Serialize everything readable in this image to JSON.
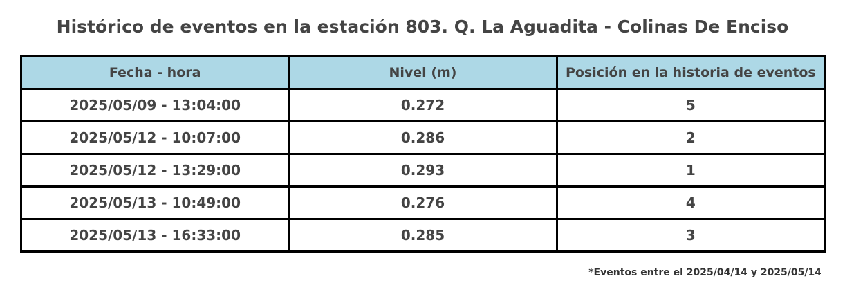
{
  "header": {
    "title": "Histórico de eventos en la estación 803. Q. La Aguadita - Colinas De Enciso"
  },
  "table": {
    "columns": [
      "Fecha - hora",
      "Nivel (m)",
      "Posición en la historia de eventos"
    ],
    "rows": [
      [
        "2025/05/09 - 13:04:00",
        "0.272",
        "5"
      ],
      [
        "2025/05/12 - 10:07:00",
        "0.286",
        "2"
      ],
      [
        "2025/05/12 - 13:29:00",
        "0.293",
        "1"
      ],
      [
        "2025/05/13 - 10:49:00",
        "0.276",
        "4"
      ],
      [
        "2025/05/13 - 16:33:00",
        "0.285",
        "3"
      ]
    ]
  },
  "footnote": "*Eventos entre el 2025/04/14 y 2025/05/14"
}
